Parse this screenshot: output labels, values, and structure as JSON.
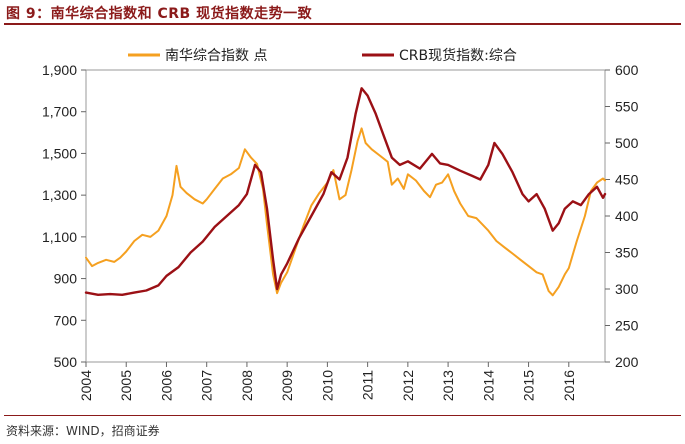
{
  "header": {
    "figure_title": "图 9：南华综合指数和 CRB 现货指数走势一致"
  },
  "footer": {
    "source": "资料来源：WIND，招商证券"
  },
  "colors": {
    "title": "#8B1A1A",
    "series_nanhua": "#F5A020",
    "series_crb": "#9B1015"
  },
  "chart_data": {
    "type": "line",
    "title": "图 9：南华综合指数和 CRB 现货指数走势一致",
    "xlabel": "",
    "ylabel": "",
    "x_ticks": [
      "2004",
      "2005",
      "2006",
      "2007",
      "2008",
      "2009",
      "2010",
      "2011",
      "2012",
      "2013",
      "2014",
      "2015",
      "2016"
    ],
    "x_range": [
      2004.0,
      2016.9
    ],
    "y_left": {
      "ticks": [
        "500",
        "700",
        "900",
        "1,100",
        "1,300",
        "1,500",
        "1,700",
        "1,900"
      ],
      "range": [
        500,
        1900
      ]
    },
    "y_right": {
      "ticks": [
        "200",
        "250",
        "300",
        "350",
        "400",
        "450",
        "500",
        "550",
        "600"
      ],
      "range": [
        200,
        600
      ]
    },
    "legend": [
      "南华综合指数 点",
      "CRB现货指数:综合"
    ],
    "legend_position": "top",
    "series": [
      {
        "name": "南华综合指数 点",
        "axis": "left",
        "points": [
          [
            2004.0,
            1000
          ],
          [
            2004.15,
            960
          ],
          [
            2004.3,
            975
          ],
          [
            2004.5,
            990
          ],
          [
            2004.7,
            980
          ],
          [
            2004.85,
            1000
          ],
          [
            2005.0,
            1030
          ],
          [
            2005.2,
            1080
          ],
          [
            2005.4,
            1110
          ],
          [
            2005.6,
            1100
          ],
          [
            2005.8,
            1130
          ],
          [
            2006.0,
            1200
          ],
          [
            2006.15,
            1300
          ],
          [
            2006.25,
            1440
          ],
          [
            2006.35,
            1340
          ],
          [
            2006.5,
            1310
          ],
          [
            2006.7,
            1280
          ],
          [
            2006.9,
            1260
          ],
          [
            2007.0,
            1280
          ],
          [
            2007.2,
            1330
          ],
          [
            2007.4,
            1380
          ],
          [
            2007.6,
            1400
          ],
          [
            2007.8,
            1430
          ],
          [
            2007.95,
            1520
          ],
          [
            2008.1,
            1480
          ],
          [
            2008.25,
            1450
          ],
          [
            2008.4,
            1330
          ],
          [
            2008.5,
            1160
          ],
          [
            2008.65,
            920
          ],
          [
            2008.75,
            830
          ],
          [
            2008.85,
            880
          ],
          [
            2009.0,
            930
          ],
          [
            2009.2,
            1040
          ],
          [
            2009.4,
            1150
          ],
          [
            2009.6,
            1250
          ],
          [
            2009.8,
            1310
          ],
          [
            2010.0,
            1360
          ],
          [
            2010.15,
            1420
          ],
          [
            2010.3,
            1280
          ],
          [
            2010.45,
            1300
          ],
          [
            2010.6,
            1420
          ],
          [
            2010.75,
            1560
          ],
          [
            2010.85,
            1620
          ],
          [
            2010.95,
            1550
          ],
          [
            2011.1,
            1520
          ],
          [
            2011.3,
            1490
          ],
          [
            2011.5,
            1460
          ],
          [
            2011.6,
            1350
          ],
          [
            2011.75,
            1380
          ],
          [
            2011.9,
            1330
          ],
          [
            2012.0,
            1400
          ],
          [
            2012.2,
            1370
          ],
          [
            2012.4,
            1320
          ],
          [
            2012.55,
            1290
          ],
          [
            2012.7,
            1350
          ],
          [
            2012.85,
            1360
          ],
          [
            2013.0,
            1400
          ],
          [
            2013.15,
            1320
          ],
          [
            2013.3,
            1260
          ],
          [
            2013.5,
            1200
          ],
          [
            2013.7,
            1190
          ],
          [
            2013.85,
            1160
          ],
          [
            2014.0,
            1130
          ],
          [
            2014.2,
            1080
          ],
          [
            2014.4,
            1050
          ],
          [
            2014.6,
            1020
          ],
          [
            2014.8,
            990
          ],
          [
            2015.0,
            960
          ],
          [
            2015.2,
            930
          ],
          [
            2015.35,
            920
          ],
          [
            2015.5,
            840
          ],
          [
            2015.6,
            820
          ],
          [
            2015.75,
            860
          ],
          [
            2015.9,
            920
          ],
          [
            2016.0,
            950
          ],
          [
            2016.2,
            1080
          ],
          [
            2016.4,
            1200
          ],
          [
            2016.55,
            1320
          ],
          [
            2016.7,
            1360
          ],
          [
            2016.85,
            1380
          ],
          [
            2016.9,
            1370
          ]
        ]
      },
      {
        "name": "CRB现货指数:综合",
        "axis": "right",
        "points": [
          [
            2004.0,
            295
          ],
          [
            2004.3,
            292
          ],
          [
            2004.6,
            293
          ],
          [
            2004.9,
            292
          ],
          [
            2005.2,
            295
          ],
          [
            2005.5,
            298
          ],
          [
            2005.8,
            305
          ],
          [
            2006.0,
            318
          ],
          [
            2006.3,
            330
          ],
          [
            2006.6,
            350
          ],
          [
            2006.9,
            365
          ],
          [
            2007.2,
            385
          ],
          [
            2007.5,
            400
          ],
          [
            2007.8,
            415
          ],
          [
            2008.0,
            430
          ],
          [
            2008.2,
            470
          ],
          [
            2008.35,
            460
          ],
          [
            2008.5,
            410
          ],
          [
            2008.65,
            340
          ],
          [
            2008.75,
            300
          ],
          [
            2008.85,
            320
          ],
          [
            2009.0,
            335
          ],
          [
            2009.3,
            370
          ],
          [
            2009.6,
            400
          ],
          [
            2009.9,
            430
          ],
          [
            2010.1,
            460
          ],
          [
            2010.3,
            450
          ],
          [
            2010.5,
            480
          ],
          [
            2010.7,
            540
          ],
          [
            2010.85,
            575
          ],
          [
            2011.0,
            565
          ],
          [
            2011.2,
            540
          ],
          [
            2011.4,
            510
          ],
          [
            2011.6,
            480
          ],
          [
            2011.8,
            470
          ],
          [
            2012.0,
            475
          ],
          [
            2012.3,
            465
          ],
          [
            2012.6,
            485
          ],
          [
            2012.8,
            472
          ],
          [
            2013.0,
            470
          ],
          [
            2013.3,
            462
          ],
          [
            2013.6,
            455
          ],
          [
            2013.8,
            450
          ],
          [
            2014.0,
            470
          ],
          [
            2014.15,
            500
          ],
          [
            2014.35,
            485
          ],
          [
            2014.6,
            460
          ],
          [
            2014.85,
            430
          ],
          [
            2015.0,
            420
          ],
          [
            2015.2,
            430
          ],
          [
            2015.4,
            410
          ],
          [
            2015.6,
            380
          ],
          [
            2015.75,
            390
          ],
          [
            2015.9,
            410
          ],
          [
            2016.1,
            420
          ],
          [
            2016.3,
            415
          ],
          [
            2016.5,
            430
          ],
          [
            2016.7,
            440
          ],
          [
            2016.85,
            425
          ],
          [
            2016.9,
            430
          ]
        ]
      }
    ]
  }
}
